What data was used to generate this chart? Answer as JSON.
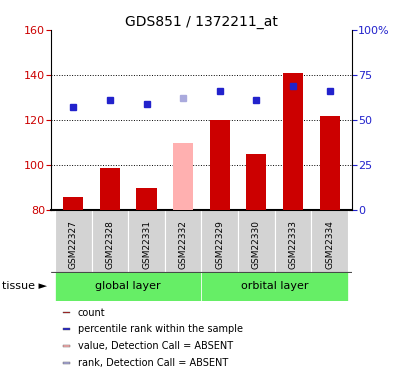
{
  "title": "GDS851 / 1372211_at",
  "samples": [
    "GSM22327",
    "GSM22328",
    "GSM22331",
    "GSM22332",
    "GSM22329",
    "GSM22330",
    "GSM22333",
    "GSM22334"
  ],
  "bar_values": [
    86,
    99,
    90,
    110,
    120,
    105,
    141,
    122
  ],
  "bar_colors": [
    "#cc0000",
    "#cc0000",
    "#cc0000",
    "#ffb0b0",
    "#cc0000",
    "#cc0000",
    "#cc0000",
    "#cc0000"
  ],
  "rank_values": [
    126,
    129,
    127,
    130,
    133,
    129,
    135,
    133
  ],
  "rank_colors": [
    "#2222cc",
    "#2222cc",
    "#2222cc",
    "#aaaadd",
    "#2222cc",
    "#2222cc",
    "#2222cc",
    "#2222cc"
  ],
  "ymin": 80,
  "ymax": 160,
  "yticks_left": [
    80,
    100,
    120,
    140,
    160
  ],
  "right_tick_positions": [
    80,
    100,
    120,
    140,
    160
  ],
  "right_tick_labels": [
    "0",
    "25",
    "50",
    "75",
    "100%"
  ],
  "groups": [
    {
      "label": "global layer",
      "start": 0,
      "end": 3
    },
    {
      "label": "orbital layer",
      "start": 4,
      "end": 7
    }
  ],
  "group_color": "#66ee66",
  "sample_box_color": "#d3d3d3",
  "tissue_label": "tissue",
  "legend_items": [
    {
      "label": "count",
      "color": "#cc0000"
    },
    {
      "label": "percentile rank within the sa​mple",
      "color": "#2222cc"
    },
    {
      "label": "value, Detection Call = ABSENT",
      "color": "#ffb0b0"
    },
    {
      "label": "rank, Detection Call = ABSENT",
      "color": "#aaaadd"
    }
  ],
  "dotted_lines": [
    100,
    120,
    140
  ],
  "bar_width": 0.55,
  "rank_marker_size": 5,
  "background_color": "#ffffff",
  "ylabel_left_color": "#cc0000",
  "ylabel_right_color": "#2222cc"
}
